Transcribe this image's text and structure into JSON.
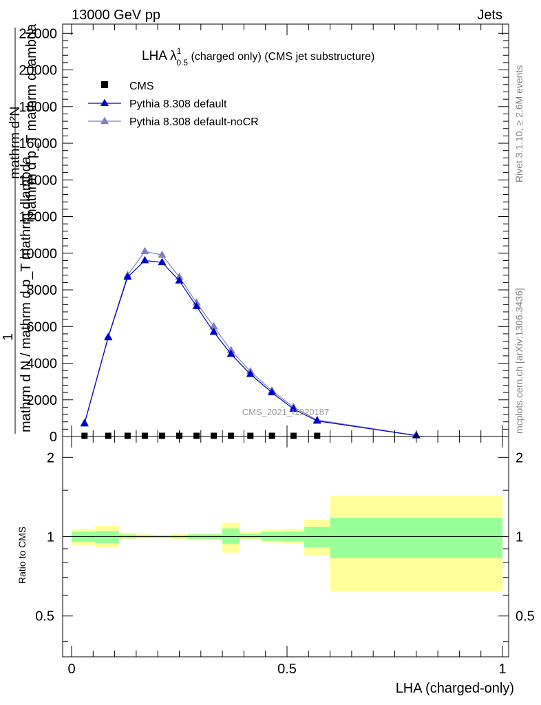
{
  "header": {
    "left": "13000 GeV pp",
    "right": "Jets"
  },
  "side_labels": {
    "rivet": "Rivet 3.1.10, ≥ 2.6M events",
    "mcplots": "mcplots.cern.ch [arXiv:1306.3436]"
  },
  "chart_data": [
    {
      "type": "line",
      "title_main": "LHA λ",
      "title_sup": "1",
      "title_sub": "0.5",
      "title_rest": " (charged only) (CMS jet substructure)",
      "ylabel": "1 / mathrm dN / mathrm d p_T mathrm d lambda / mathrm d^2N / mathrm dp_T mathrm dlambda",
      "ylabel_frac_top": "mathrm d²N",
      "ylabel_frac_bottom": "mathrm d p_T mathrm d lambda",
      "ylabel_main": "1",
      "ylabel_second": "mathrm d N / mathrm d p_T mathrm dlambda",
      "watermark": "CMS_2021_I1920187",
      "xlim": [
        0,
        1
      ],
      "ylim": [
        0,
        22500
      ],
      "yticks": [
        0,
        2000,
        4000,
        6000,
        8000,
        10000,
        12000,
        14000,
        16000,
        18000,
        20000,
        22000
      ],
      "ytick_labels": [
        "0",
        "2000",
        "4000",
        "6000",
        "8000",
        "10000",
        "12000",
        "14000",
        "16000",
        "18000",
        "20000",
        "22000"
      ],
      "legend_position": "top-left",
      "colors": {
        "cms": "#000000",
        "default": "#0000cc",
        "nocr": "#7f7fbf"
      },
      "series": [
        {
          "name": "CMS",
          "marker": "square",
          "x": [
            0.03,
            0.085,
            0.13,
            0.17,
            0.21,
            0.25,
            0.29,
            0.33,
            0.37,
            0.415,
            0.465,
            0.515,
            0.57
          ],
          "y": [
            0,
            0,
            0,
            0,
            0,
            0,
            0,
            0,
            0,
            0,
            0,
            0,
            0
          ]
        },
        {
          "name": "Pythia 8.308 default",
          "marker": "triangle",
          "x": [
            0.03,
            0.085,
            0.13,
            0.17,
            0.21,
            0.25,
            0.29,
            0.33,
            0.37,
            0.415,
            0.465,
            0.515,
            0.57,
            0.8
          ],
          "y": [
            700,
            5400,
            8700,
            9600,
            9500,
            8500,
            7100,
            5700,
            4500,
            3400,
            2400,
            1500,
            850,
            50
          ]
        },
        {
          "name": "Pythia 8.308 default-noCR",
          "marker": "triangle",
          "x": [
            0.03,
            0.085,
            0.13,
            0.17,
            0.21,
            0.25,
            0.29,
            0.33,
            0.37,
            0.415,
            0.465,
            0.515,
            0.57,
            0.8
          ],
          "y": [
            750,
            5450,
            8800,
            10100,
            9900,
            8700,
            7300,
            6000,
            4700,
            3550,
            2500,
            1600,
            900,
            60
          ]
        }
      ]
    },
    {
      "type": "area",
      "ylabel": "Ratio to CMS",
      "xlabel": "LHA (charged-only)",
      "xlim": [
        0,
        1
      ],
      "xticks": [
        0,
        0.5,
        1
      ],
      "xtick_labels": [
        "0",
        "0.5",
        "1"
      ],
      "yticks": [
        0.5,
        1,
        2
      ],
      "ytick_labels": [
        "0.5",
        "1",
        "2"
      ],
      "ylim": [
        0.35,
        2.4
      ],
      "log_y": true,
      "colors": {
        "stat": "#99ff99",
        "total": "#ffff99",
        "line": "#000000"
      },
      "bins": [
        {
          "x0": 0.0,
          "x1": 0.055,
          "tot_lo": 0.93,
          "tot_hi": 1.07,
          "stat_lo": 0.955,
          "stat_hi": 1.045
        },
        {
          "x0": 0.055,
          "x1": 0.11,
          "tot_lo": 0.91,
          "tot_hi": 1.1,
          "stat_lo": 0.945,
          "stat_hi": 1.05
        },
        {
          "x0": 0.11,
          "x1": 0.15,
          "tot_lo": 0.98,
          "tot_hi": 1.035,
          "stat_lo": 0.985,
          "stat_hi": 1.02
        },
        {
          "x0": 0.15,
          "x1": 0.19,
          "tot_lo": 0.985,
          "tot_hi": 1.02,
          "stat_lo": 0.99,
          "stat_hi": 1.012
        },
        {
          "x0": 0.19,
          "x1": 0.23,
          "tot_lo": 0.985,
          "tot_hi": 1.015,
          "stat_lo": 0.99,
          "stat_hi": 1.01
        },
        {
          "x0": 0.23,
          "x1": 0.27,
          "tot_lo": 0.98,
          "tot_hi": 1.02,
          "stat_lo": 0.988,
          "stat_hi": 1.012
        },
        {
          "x0": 0.27,
          "x1": 0.31,
          "tot_lo": 0.97,
          "tot_hi": 1.03,
          "stat_lo": 0.98,
          "stat_hi": 1.02
        },
        {
          "x0": 0.31,
          "x1": 0.35,
          "tot_lo": 0.97,
          "tot_hi": 1.03,
          "stat_lo": 0.98,
          "stat_hi": 1.02
        },
        {
          "x0": 0.35,
          "x1": 0.39,
          "tot_lo": 0.87,
          "tot_hi": 1.13,
          "stat_lo": 0.94,
          "stat_hi": 1.075
        },
        {
          "x0": 0.39,
          "x1": 0.44,
          "tot_lo": 0.975,
          "tot_hi": 1.04,
          "stat_lo": 0.985,
          "stat_hi": 1.025
        },
        {
          "x0": 0.44,
          "x1": 0.49,
          "tot_lo": 0.95,
          "tot_hi": 1.06,
          "stat_lo": 0.965,
          "stat_hi": 1.04
        },
        {
          "x0": 0.49,
          "x1": 0.54,
          "tot_lo": 0.94,
          "tot_hi": 1.07,
          "stat_lo": 0.96,
          "stat_hi": 1.045
        },
        {
          "x0": 0.54,
          "x1": 0.6,
          "tot_lo": 0.85,
          "tot_hi": 1.16,
          "stat_lo": 0.91,
          "stat_hi": 1.09
        },
        {
          "x0": 0.6,
          "x1": 1.0,
          "tot_lo": 0.62,
          "tot_hi": 1.43,
          "stat_lo": 0.83,
          "stat_hi": 1.18
        }
      ]
    }
  ]
}
